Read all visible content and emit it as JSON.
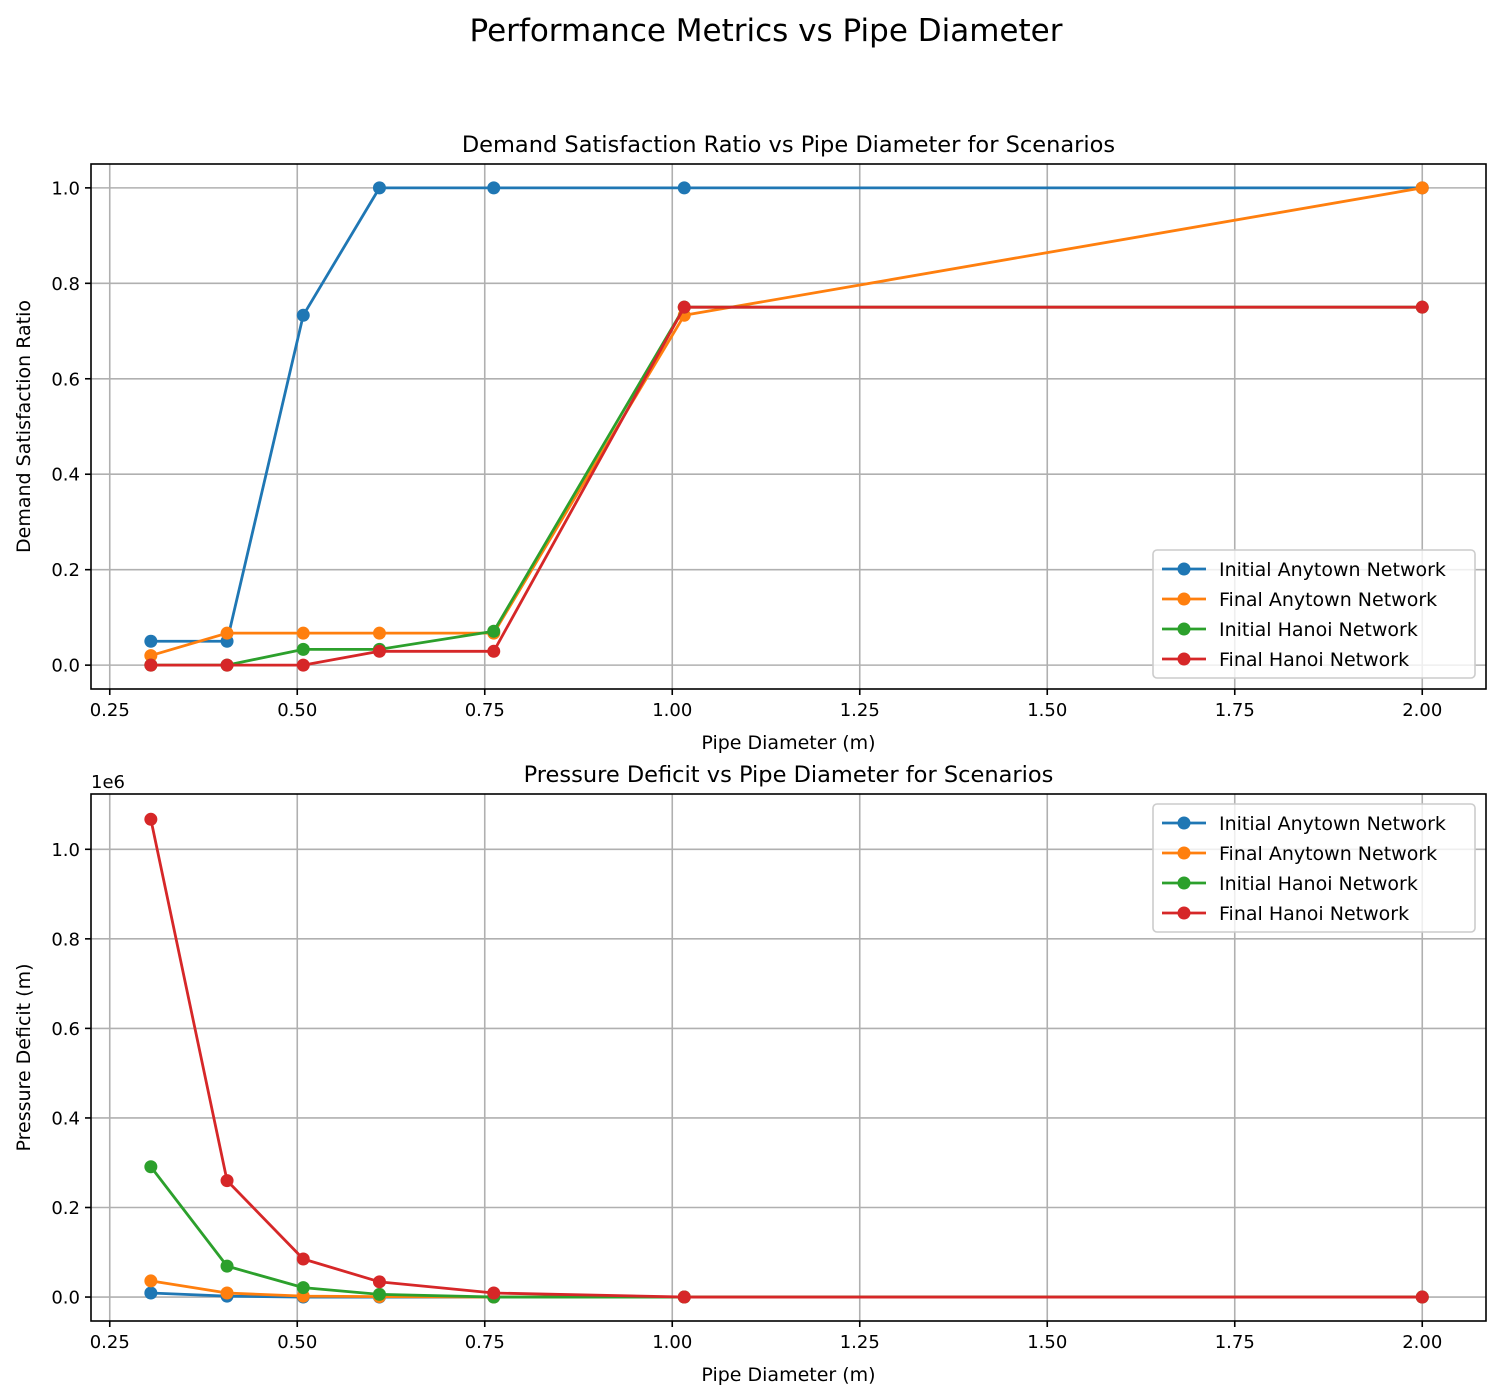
{
  "figure_title": "Performance Metrics vs Pipe Diameter",
  "chart_data": [
    {
      "type": "line",
      "title": "Demand Satisfaction Ratio vs Pipe Diameter for Scenarios",
      "xlabel": "Pipe Diameter (m)",
      "ylabel": "Demand Satisfaction Ratio",
      "xlim": [
        0.225,
        2.085
      ],
      "ylim": [
        -0.05,
        1.05
      ],
      "xticks": [
        0.25,
        0.5,
        0.75,
        1.0,
        1.25,
        1.5,
        1.75,
        2.0
      ],
      "xtick_labels": [
        "0.25",
        "0.50",
        "0.75",
        "1.00",
        "1.25",
        "1.50",
        "1.75",
        "2.00"
      ],
      "yticks": [
        0.0,
        0.2,
        0.4,
        0.6,
        0.8,
        1.0
      ],
      "ytick_labels": [
        "0.0",
        "0.2",
        "0.4",
        "0.6",
        "0.8",
        "1.0"
      ],
      "offset_text": "",
      "grid": true,
      "legend_position": "lower-right",
      "x": [
        0.3048,
        0.4064,
        0.508,
        0.6096,
        0.762,
        1.016,
        2.0
      ],
      "series": [
        {
          "name": "Initial Anytown Network",
          "color": "#1f77b4",
          "values": [
            0.05,
            0.05,
            0.733,
            1.0,
            1.0,
            1.0,
            1.0
          ]
        },
        {
          "name": "Final Anytown Network",
          "color": "#ff7f0e",
          "values": [
            0.02,
            0.067,
            0.067,
            0.067,
            0.067,
            0.733,
            1.0
          ]
        },
        {
          "name": "Initial Hanoi Network",
          "color": "#2ca02c",
          "values": [
            0.0,
            0.0,
            0.033,
            0.033,
            0.071,
            0.75,
            0.75
          ]
        },
        {
          "name": "Final Hanoi Network",
          "color": "#d62728",
          "values": [
            0.0,
            0.0,
            0.0,
            0.029,
            0.029,
            0.75,
            0.75
          ]
        }
      ]
    },
    {
      "type": "line",
      "title": "Pressure Deficit vs Pipe Diameter for Scenarios",
      "xlabel": "Pipe Diameter (m)",
      "ylabel": "Pressure Deficit (m)",
      "xlim": [
        0.225,
        2.085
      ],
      "ylim": [
        -0.0535,
        1.1235
      ],
      "xticks": [
        0.25,
        0.5,
        0.75,
        1.0,
        1.25,
        1.5,
        1.75,
        2.0
      ],
      "xtick_labels": [
        "0.25",
        "0.50",
        "0.75",
        "1.00",
        "1.25",
        "1.50",
        "1.75",
        "2.00"
      ],
      "yticks": [
        0.0,
        0.2,
        0.4,
        0.6,
        0.8,
        1.0
      ],
      "ytick_labels": [
        "0.0",
        "0.2",
        "0.4",
        "0.6",
        "0.8",
        "1.0"
      ],
      "offset_text": "1e6",
      "grid": true,
      "legend_position": "upper-right",
      "x": [
        0.3048,
        0.4064,
        0.508,
        0.6096,
        0.762,
        1.016,
        2.0
      ],
      "series": [
        {
          "name": "Initial Anytown Network",
          "color": "#1f77b4",
          "values": [
            0.009,
            0.002,
            0.0,
            0.0,
            0.0,
            0.0,
            0.0
          ]
        },
        {
          "name": "Final Anytown Network",
          "color": "#ff7f0e",
          "values": [
            0.036,
            0.009,
            0.002,
            0.001,
            0.0,
            0.0,
            0.0
          ]
        },
        {
          "name": "Initial Hanoi Network",
          "color": "#2ca02c",
          "values": [
            0.291,
            0.069,
            0.021,
            0.006,
            0.0,
            0.0,
            0.0
          ]
        },
        {
          "name": "Final Hanoi Network",
          "color": "#d62728",
          "values": [
            1.067,
            0.26,
            0.085,
            0.034,
            0.009,
            0.0,
            0.0
          ]
        }
      ]
    }
  ]
}
